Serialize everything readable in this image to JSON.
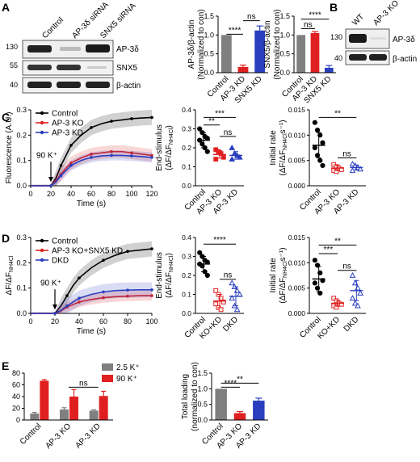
{
  "panels": {
    "A": {
      "letter": "A",
      "blot": {
        "lanes": [
          "Control",
          "AP-3δ siRNA",
          "SNX5 siRNA"
        ],
        "rows": [
          {
            "label": "AP-3δ",
            "mw": "130"
          },
          {
            "label": "SNX5",
            "mw": "55"
          },
          {
            "label": "β-actin",
            "mw": "40"
          }
        ]
      },
      "charts": [
        {
          "type": "bar",
          "ylabel": "AP-3δ/β-actin (Normalized to con)",
          "ylabel_lines": [
            "AP-3δ/β-actin",
            "(Normalized to con)"
          ],
          "categories": [
            "Control",
            "AP-3 KD",
            "SNX5 KD"
          ],
          "values": [
            1.0,
            0.15,
            1.12
          ],
          "errors": [
            0,
            0.05,
            0.12
          ],
          "colors": [
            "#7f7f7f",
            "#e02020",
            "#2a3fbf"
          ],
          "ylim": [
            0,
            1.5
          ],
          "yticks": [
            "0.0",
            "0.5",
            "1.0",
            "1.5"
          ],
          "significance": [
            {
              "from": 0,
              "to": 1,
              "label": "****",
              "level": 1.02
            },
            {
              "from": 1,
              "to": 2,
              "label": "ns",
              "level": 1.38
            }
          ]
        },
        {
          "type": "bar",
          "ylabel": "SNX5/β-actin (Normalized to con)",
          "ylabel_lines": [
            "SNX5/β-actin",
            "(Normalized to con)"
          ],
          "categories": [
            "Control",
            "AP-3 KD",
            "SNX5 KD"
          ],
          "values": [
            1.0,
            1.05,
            0.13
          ],
          "errors": [
            0,
            0.04,
            0.06
          ],
          "colors": [
            "#7f7f7f",
            "#e02020",
            "#2a3fbf"
          ],
          "ylim": [
            0,
            1.5
          ],
          "yticks": [
            "0.0",
            "0.5",
            "1.0",
            "1.5"
          ],
          "significance": [
            {
              "from": 0,
              "to": 1,
              "label": "ns",
              "level": 1.17
            },
            {
              "from": 0,
              "to": 2,
              "label": "****",
              "level": 1.42
            }
          ]
        }
      ]
    },
    "B": {
      "letter": "B",
      "blot": {
        "lanes": [
          "WT",
          "AP-3 KO"
        ],
        "rows": [
          {
            "label": "AP-3δ",
            "mw": "130"
          },
          {
            "label": "β-actin",
            "mw": "40"
          }
        ]
      }
    },
    "C": {
      "letter": "C",
      "line": {
        "type": "line",
        "ylabel": "Fluorescence (A.U.)",
        "xlabel": "Time (s)",
        "xlim": [
          0,
          120
        ],
        "ylim": [
          0,
          0.3
        ],
        "xticks": [
          "0",
          "20",
          "40",
          "60",
          "80",
          "100",
          "120"
        ],
        "yticks": [
          "0.0",
          "0.1",
          "0.2",
          "0.3"
        ],
        "annotation": "90 K⁺",
        "annotation_x": 20,
        "series": [
          {
            "name": "Control",
            "color": "#000000",
            "x": [
              0,
              20,
              25,
              30,
              35,
              40,
              50,
              60,
              70,
              80,
              90,
              100,
              110,
              120
            ],
            "y": [
              0,
              0,
              0.03,
              0.08,
              0.12,
              0.16,
              0.2,
              0.23,
              0.245,
              0.255,
              0.26,
              0.265,
              0.268,
              0.27
            ],
            "err": 0.03
          },
          {
            "name": "AP-3 KO",
            "color": "#e02020",
            "x": [
              0,
              20,
              25,
              30,
              35,
              40,
              50,
              60,
              70,
              80,
              90,
              100,
              110,
              120
            ],
            "y": [
              0,
              0,
              0.02,
              0.045,
              0.07,
              0.09,
              0.11,
              0.125,
              0.13,
              0.135,
              0.135,
              0.13,
              0.125,
              0.12
            ],
            "err": 0.025
          },
          {
            "name": "AP-3 KD",
            "color": "#2a3fbf",
            "x": [
              0,
              20,
              25,
              30,
              35,
              40,
              50,
              60,
              70,
              80,
              90,
              100,
              110,
              120
            ],
            "y": [
              0,
              0,
              0.015,
              0.04,
              0.06,
              0.08,
              0.1,
              0.112,
              0.118,
              0.12,
              0.12,
              0.118,
              0.115,
              0.112
            ],
            "err": 0.02
          }
        ]
      },
      "scatters": [
        {
          "type": "scatter",
          "ylabel_main": "End-stimulus",
          "ylabel_sub": "(ΔF/ΔF",
          "ylabel_subscript": "NH4Cl",
          "ylabel_end": ")",
          "categories": [
            "Control",
            "AP-3 KO",
            "AP-3 KD"
          ],
          "ylim": [
            0,
            0.4
          ],
          "yticks": [
            "0.0",
            "0.1",
            "0.2",
            "0.3",
            "0.4"
          ],
          "groups": [
            {
              "color": "#000000",
              "marker": "circle",
              "filled": true,
              "points": [
                0.3,
                0.28,
                0.26,
                0.25,
                0.24,
                0.22,
                0.2,
                0.18
              ],
              "mean": 0.24,
              "err": 0.04
            },
            {
              "color": "#e02020",
              "marker": "square",
              "filled": true,
              "points": [
                0.19,
                0.18,
                0.17,
                0.15,
                0.14
              ],
              "mean": 0.165,
              "err": 0.02
            },
            {
              "color": "#2a3fbf",
              "marker": "triangle",
              "filled": true,
              "points": [
                0.2,
                0.17,
                0.16,
                0.15,
                0.14
              ],
              "mean": 0.16,
              "err": 0.02
            }
          ],
          "significance": [
            {
              "from": 0,
              "to": 2,
              "label": "***",
              "level": 0.36
            },
            {
              "from": 0,
              "to": 1,
              "label": "**",
              "level": 0.32
            },
            {
              "from": 1,
              "to": 2,
              "label": "ns",
              "level": 0.26
            }
          ]
        },
        {
          "type": "scatter",
          "ylabel_main": "Initial rate",
          "ylabel_sub": "(ΔF/ΔF",
          "ylabel_subscript": "NH4Cl",
          "ylabel_end": "s⁻¹)",
          "categories": [
            "Control",
            "AP-3 KO",
            "AP-3 KD"
          ],
          "ylim": [
            0,
            0.015
          ],
          "yticks": [
            "0.000",
            "0.005",
            "0.010",
            "0.015"
          ],
          "groups": [
            {
              "color": "#000000",
              "marker": "circle",
              "filled": true,
              "points": [
                0.0125,
                0.011,
                0.01,
                0.0085,
                0.0075,
                0.006,
                0.005,
                0.004
              ],
              "mean": 0.008,
              "err": 0.0025
            },
            {
              "color": "#e02020",
              "marker": "square",
              "filled": false,
              "points": [
                0.0042,
                0.0038,
                0.0035,
                0.0032,
                0.003,
                0.0028
              ],
              "mean": 0.0035,
              "err": 0.0005
            },
            {
              "color": "#2a3fbf",
              "marker": "triangle",
              "filled": false,
              "points": [
                0.0043,
                0.004,
                0.0036,
                0.0033,
                0.003
              ],
              "mean": 0.0036,
              "err": 0.0005
            }
          ],
          "significance": [
            {
              "from": 0,
              "to": 2,
              "label": "**",
              "level": 0.0135
            },
            {
              "from": 1,
              "to": 2,
              "label": "ns",
              "level": 0.0055
            }
          ]
        }
      ]
    },
    "D": {
      "letter": "D",
      "line": {
        "type": "line",
        "ylabel_main": "ΔF/ΔF",
        "ylabel_subscript": "NH4Cl",
        "xlabel": "Time (s)",
        "xlim": [
          0,
          100
        ],
        "ylim": [
          0,
          0.3
        ],
        "xticks": [
          "0",
          "20",
          "40",
          "60",
          "80",
          "100"
        ],
        "yticks": [
          "0.0",
          "0.1",
          "0.2",
          "0.3"
        ],
        "annotation": "90 K⁺",
        "annotation_x": 20,
        "series": [
          {
            "name": "Control",
            "color": "#000000",
            "x": [
              0,
              20,
              25,
              30,
              35,
              40,
              50,
              60,
              70,
              80,
              90,
              100
            ],
            "y": [
              0,
              0,
              0.03,
              0.07,
              0.11,
              0.14,
              0.18,
              0.21,
              0.23,
              0.245,
              0.25,
              0.255
            ],
            "err": 0.03
          },
          {
            "name": "AP-3 KO+SNX5 KD",
            "color": "#e02020",
            "x": [
              0,
              20,
              25,
              30,
              35,
              40,
              50,
              60,
              70,
              80,
              90,
              100
            ],
            "y": [
              0,
              0,
              0.01,
              0.025,
              0.035,
              0.045,
              0.055,
              0.062,
              0.066,
              0.068,
              0.07,
              0.07
            ],
            "err": 0.02
          },
          {
            "name": "DKD",
            "color": "#2a3fbf",
            "x": [
              0,
              20,
              25,
              30,
              35,
              40,
              50,
              60,
              70,
              80,
              90,
              100
            ],
            "y": [
              0,
              0,
              0.012,
              0.03,
              0.045,
              0.06,
              0.075,
              0.085,
              0.09,
              0.092,
              0.093,
              0.093
            ],
            "err": 0.03
          }
        ]
      },
      "scatters": [
        {
          "type": "scatter",
          "ylabel_main": "End-stimulus",
          "ylabel_sub": "(ΔF/ΔF",
          "ylabel_subscript": "NH4Cl",
          "ylabel_end": ")",
          "categories": [
            "Control",
            "KO+KD",
            "DKD"
          ],
          "ylim": [
            0,
            0.4
          ],
          "yticks": [
            "0.0",
            "0.1",
            "0.2",
            "0.3",
            "0.4"
          ],
          "groups": [
            {
              "color": "#000000",
              "marker": "circle",
              "filled": true,
              "points": [
                0.32,
                0.3,
                0.28,
                0.27,
                0.26,
                0.25,
                0.22,
                0.2
              ],
              "mean": 0.26,
              "err": 0.04
            },
            {
              "color": "#e02020",
              "marker": "square",
              "filled": false,
              "points": [
                0.12,
                0.1,
                0.08,
                0.06,
                0.05,
                0.03,
                0.02
              ],
              "mean": 0.065,
              "err": 0.035
            },
            {
              "color": "#2a3fbf",
              "marker": "triangle",
              "filled": false,
              "points": [
                0.16,
                0.14,
                0.12,
                0.1,
                0.08,
                0.04,
                0.02
              ],
              "mean": 0.09,
              "err": 0.05
            }
          ],
          "significance": [
            {
              "from": 0,
              "to": 2,
              "label": "****",
              "level": 0.365
            },
            {
              "from": 1,
              "to": 2,
              "label": "ns",
              "level": 0.18
            }
          ]
        },
        {
          "type": "scatter",
          "ylabel_main": "Initial rate",
          "ylabel_sub": "(ΔF/ΔF",
          "ylabel_subscript": "NH4Cl",
          "ylabel_end": "s⁻¹)",
          "categories": [
            "Control",
            "KO+KD",
            "DKD"
          ],
          "ylim": [
            0,
            0.015
          ],
          "yticks": [
            "0.000",
            "0.005",
            "0.010",
            "0.015"
          ],
          "groups": [
            {
              "color": "#000000",
              "marker": "circle",
              "filled": true,
              "points": [
                0.0105,
                0.0095,
                0.008,
                0.0065,
                0.006,
                0.005,
                0.004
              ],
              "mean": 0.0068,
              "err": 0.0025
            },
            {
              "color": "#e02020",
              "marker": "square",
              "filled": false,
              "points": [
                0.003,
                0.0025,
                0.002,
                0.0018,
                0.0015,
                0.0012
              ],
              "mean": 0.002,
              "err": 0.0006
            },
            {
              "color": "#2a3fbf",
              "marker": "triangle",
              "filled": false,
              "points": [
                0.0075,
                0.006,
                0.005,
                0.004,
                0.003,
                0.002,
                0.0015
              ],
              "mean": 0.0045,
              "err": 0.002
            }
          ],
          "significance": [
            {
              "from": 0,
              "to": 2,
              "label": "**",
              "level": 0.0135
            },
            {
              "from": 0,
              "to": 1,
              "label": "***",
              "level": 0.0118
            },
            {
              "from": 1,
              "to": 2,
              "label": "ns",
              "level": 0.0085
            }
          ]
        }
      ]
    },
    "E": {
      "letter": "E",
      "charts": [
        {
          "type": "bar",
          "categories": [
            "Control",
            "AP-3 KO",
            "AP-3 KD"
          ],
          "series": [
            {
              "name": "2.5 K⁺",
              "color": "#7f7f7f",
              "values": [
                11,
                18,
                16
              ],
              "errors": [
                2,
                3,
                1.5
              ]
            },
            {
              "name": "90 K⁺",
              "color": "#e02020",
              "values": [
                67,
                40,
                41
              ],
              "errors": [
                2,
                12,
                8
              ]
            }
          ],
          "ylim": [
            0,
            80
          ],
          "yticks": [
            "0",
            "20",
            "40",
            "60",
            "80"
          ],
          "significance": [
            {
              "from": 1,
              "to": 2,
              "label": "ns",
              "level": 56
            }
          ]
        },
        {
          "type": "bar",
          "ylabel": "Total loading (normalized to con)",
          "ylabel_lines": [
            "Total loading",
            "(normalized to con)"
          ],
          "categories": [
            "Control",
            "AP-3 KO",
            "AP-3 KD"
          ],
          "values": [
            1.0,
            0.22,
            0.62
          ],
          "errors": [
            0,
            0.05,
            0.08
          ],
          "colors": [
            "#7f7f7f",
            "#e02020",
            "#2a3fbf"
          ],
          "ylim": [
            0,
            1.5
          ],
          "yticks": [
            "0.0",
            "0.5",
            "1.0",
            "1.5"
          ],
          "significance": [
            {
              "from": 0,
              "to": 1,
              "label": "****",
              "level": 1.05
            },
            {
              "from": 0,
              "to": 2,
              "label": "**",
              "level": 1.18
            }
          ]
        }
      ]
    }
  }
}
